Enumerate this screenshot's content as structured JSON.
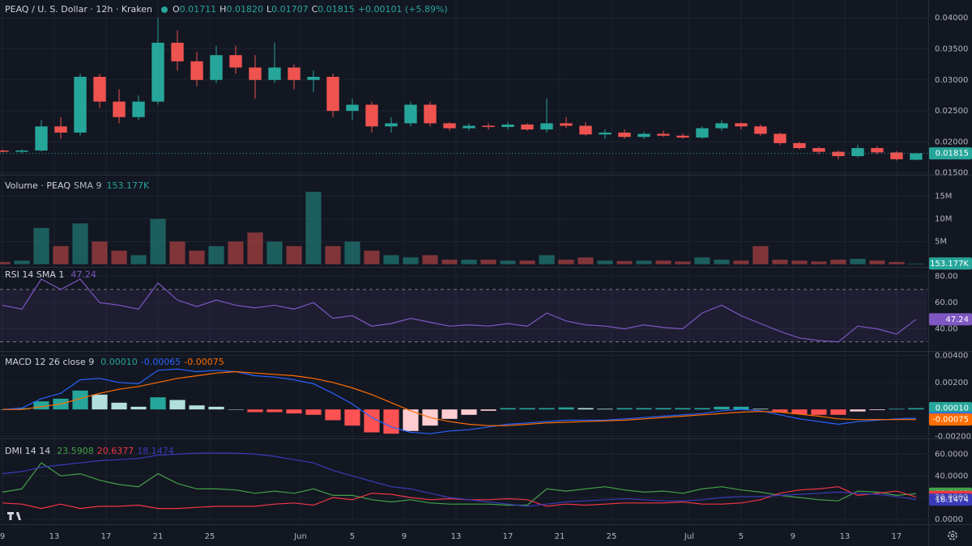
{
  "chart_data": [
    {
      "type": "candlestick",
      "title": "PEAQ / U. S. Dollar · 12h · Kraken",
      "legend_labels": [
        "O",
        "H",
        "L",
        "C"
      ],
      "legend_values": [
        "0.01711",
        "0.01820",
        "0.01707",
        "0.01815"
      ],
      "change": "+0.00101 (+5.89%)",
      "up_color": "#26a69a",
      "down_color": "#ef5350",
      "grid": true,
      "x": [
        0,
        1.5,
        3,
        4.5,
        6,
        7.5,
        9,
        10.5,
        12,
        13.5,
        15,
        16.5,
        18,
        19.5,
        21,
        22.5,
        24,
        25.5,
        27,
        28.5,
        30,
        31.5,
        33,
        34.5,
        36,
        37.5,
        39,
        40.5,
        42,
        43.5,
        45,
        46.5,
        48,
        49.5,
        51,
        52.5,
        54,
        55.5,
        57,
        58.5,
        60,
        61.5,
        63,
        64.5,
        66,
        67.5,
        69,
        70.5
      ],
      "xlim": [
        -0.19,
        71.38
      ],
      "open": [
        0.0186,
        0.0184,
        0.0186,
        0.0225,
        0.0215,
        0.0305,
        0.0265,
        0.024,
        0.0265,
        0.036,
        0.033,
        0.03,
        0.034,
        0.032,
        0.03,
        0.032,
        0.03,
        0.0305,
        0.025,
        0.026,
        0.0225,
        0.023,
        0.026,
        0.023,
        0.0222,
        0.0226,
        0.0224,
        0.0228,
        0.022,
        0.023,
        0.0226,
        0.0212,
        0.0215,
        0.0208,
        0.0213,
        0.021,
        0.0207,
        0.0222,
        0.023,
        0.0225,
        0.0213,
        0.0198,
        0.019,
        0.0184,
        0.0177,
        0.019,
        0.0183,
        0.01711
      ],
      "high": [
        0.0188,
        0.0188,
        0.0235,
        0.024,
        0.031,
        0.031,
        0.0285,
        0.0275,
        0.04,
        0.038,
        0.0345,
        0.0355,
        0.0355,
        0.034,
        0.036,
        0.0325,
        0.0315,
        0.031,
        0.027,
        0.0265,
        0.024,
        0.0265,
        0.0265,
        0.0232,
        0.023,
        0.023,
        0.0232,
        0.023,
        0.027,
        0.024,
        0.0232,
        0.022,
        0.022,
        0.0216,
        0.0218,
        0.0214,
        0.0225,
        0.0235,
        0.0232,
        0.0228,
        0.0215,
        0.02,
        0.0192,
        0.0186,
        0.0195,
        0.0193,
        0.0185,
        0.0182
      ],
      "low": [
        0.0183,
        0.0182,
        0.0185,
        0.0205,
        0.021,
        0.0255,
        0.023,
        0.0235,
        0.026,
        0.0315,
        0.029,
        0.0295,
        0.031,
        0.027,
        0.0295,
        0.0285,
        0.028,
        0.024,
        0.0235,
        0.0215,
        0.0215,
        0.0225,
        0.0225,
        0.0218,
        0.0218,
        0.022,
        0.022,
        0.0218,
        0.0215,
        0.0222,
        0.021,
        0.0205,
        0.0205,
        0.0205,
        0.0208,
        0.0205,
        0.0205,
        0.0218,
        0.022,
        0.021,
        0.0195,
        0.0188,
        0.018,
        0.0172,
        0.0175,
        0.018,
        0.017,
        0.01707
      ],
      "close": [
        0.0184,
        0.0186,
        0.0225,
        0.0215,
        0.0305,
        0.0265,
        0.024,
        0.0265,
        0.036,
        0.033,
        0.03,
        0.034,
        0.032,
        0.03,
        0.032,
        0.03,
        0.0305,
        0.025,
        0.026,
        0.0225,
        0.023,
        0.026,
        0.023,
        0.0222,
        0.0226,
        0.0224,
        0.0228,
        0.022,
        0.023,
        0.0226,
        0.0212,
        0.0215,
        0.0208,
        0.0213,
        0.021,
        0.0207,
        0.0222,
        0.023,
        0.0225,
        0.0213,
        0.0198,
        0.019,
        0.0184,
        0.0177,
        0.019,
        0.0183,
        0.0172,
        0.01815
      ],
      "ylim": [
        0.0147,
        0.0429
      ],
      "yticks": [
        {
          "value": 0.015,
          "label": "0.01500"
        },
        {
          "value": 0.02,
          "label": "0.02000"
        },
        {
          "value": 0.025,
          "label": "0.02500"
        },
        {
          "value": 0.03,
          "label": "0.03000"
        },
        {
          "value": 0.035,
          "label": "0.03500"
        },
        {
          "value": 0.04,
          "label": "0.04000"
        }
      ]
    },
    {
      "type": "bar",
      "title": "Volume · PEAQ",
      "indicator": "SMA 9",
      "up_color": "#26a69a",
      "down_color": "#ef5350",
      "grid": true,
      "x": [
        0,
        1.5,
        3,
        4.5,
        6,
        7.5,
        9,
        10.5,
        12,
        13.5,
        15,
        16.5,
        18,
        19.5,
        21,
        22.5,
        24,
        25.5,
        27,
        28.5,
        30,
        31.5,
        33,
        34.5,
        36,
        37.5,
        39,
        40.5,
        42,
        43.5,
        45,
        46.5,
        48,
        49.5,
        51,
        52.5,
        54,
        55.5,
        57,
        58.5,
        60,
        61.5,
        63,
        64.5,
        66,
        67.5,
        69,
        70.5
      ],
      "xlim": [
        -0.19,
        71.38
      ],
      "values": [
        0.5,
        0.8,
        8,
        4,
        9,
        5,
        3,
        2,
        10,
        5,
        3,
        4,
        5,
        7,
        5,
        4,
        16,
        4,
        5,
        3,
        2,
        1.5,
        2,
        1,
        1,
        1,
        0.8,
        0.8,
        2,
        1,
        1.5,
        0.8,
        0.7,
        0.8,
        0.8,
        0.6,
        1.5,
        1,
        0.8,
        4,
        1,
        0.8,
        0.6,
        1,
        1.2,
        0.8,
        0.5,
        0.153177
      ],
      "value_labels": [
        null,
        null,
        null,
        null,
        null,
        null,
        null,
        null,
        null,
        null,
        null,
        null,
        null,
        null,
        null,
        null,
        null,
        null,
        null,
        null,
        null,
        null,
        null,
        null,
        null,
        null,
        null,
        null,
        null,
        null,
        null,
        null,
        null,
        null,
        null,
        null,
        null,
        null,
        null,
        null,
        null,
        null,
        null,
        null,
        null,
        null,
        null,
        "153.177K"
      ],
      "ylim": [
        -0.6,
        19.4
      ],
      "yticks": [
        {
          "value": 5,
          "label": "5M"
        },
        {
          "value": 10,
          "label": "10M"
        },
        {
          "value": 15,
          "label": "15M"
        }
      ]
    },
    {
      "type": "line",
      "title": "RSI 14 SMA 1",
      "grid": true,
      "bands": [
        30,
        70
      ],
      "band_color": "#7e57c2",
      "x": [
        0,
        1.5,
        3,
        4.5,
        6,
        7.5,
        9,
        10.5,
        12,
        13.5,
        15,
        16.5,
        18,
        19.5,
        21,
        22.5,
        24,
        25.5,
        27,
        28.5,
        30,
        31.5,
        33,
        34.5,
        36,
        37.5,
        39,
        40.5,
        42,
        43.5,
        45,
        46.5,
        48,
        49.5,
        51,
        52.5,
        54,
        55.5,
        57,
        58.5,
        60,
        61.5,
        63,
        64.5,
        66,
        67.5,
        69,
        70.5
      ],
      "xlim": [
        -0.19,
        71.38
      ],
      "series": [
        {
          "color": "#7e57c2",
          "values": [
            58,
            55,
            78,
            70,
            78,
            60,
            58,
            55,
            75,
            62,
            57,
            62,
            58,
            56,
            58,
            55,
            60,
            48,
            50,
            42,
            44,
            48,
            45,
            42,
            43,
            42,
            44,
            42,
            52,
            46,
            43,
            42,
            40,
            43,
            41,
            40,
            52,
            58,
            50,
            44,
            38,
            33,
            31,
            30,
            42,
            40,
            36,
            47.24
          ]
        }
      ],
      "ylim": [
        23,
        86
      ],
      "yticks": [
        {
          "value": 40,
          "label": "40.00"
        },
        {
          "value": 60,
          "label": "60.00"
        },
        {
          "value": 80,
          "label": "80.00"
        }
      ]
    },
    {
      "type": "line",
      "title": "MACD 12 26 close 9",
      "grid": true,
      "x": [
        0,
        1.5,
        3,
        4.5,
        6,
        7.5,
        9,
        10.5,
        12,
        13.5,
        15,
        16.5,
        18,
        19.5,
        21,
        22.5,
        24,
        25.5,
        27,
        28.5,
        30,
        31.5,
        33,
        34.5,
        36,
        37.5,
        39,
        40.5,
        42,
        43.5,
        45,
        46.5,
        48,
        49.5,
        51,
        52.5,
        54,
        55.5,
        57,
        58.5,
        60,
        61.5,
        63,
        64.5,
        66,
        67.5,
        69,
        70.5
      ],
      "xlim": [
        -0.19,
        71.38
      ],
      "histogram": {
        "colors": [
          "#26a69a",
          "#b2dfdb",
          "#ff5252",
          "#ffcdd2"
        ],
        "values": [
          0,
          0.0001,
          0.0006,
          0.0008,
          0.0014,
          0.0011,
          0.0005,
          0.0002,
          0.0009,
          0.0007,
          0.0003,
          0.0002,
          0,
          -0.0002,
          -0.0002,
          -0.0003,
          -0.0004,
          -0.0008,
          -0.0012,
          -0.0017,
          -0.0018,
          -0.0016,
          -0.0012,
          -0.0007,
          -0.0004,
          -0.0001,
          0.0001,
          0.0001,
          0.0001,
          0.00015,
          0.0001,
          5e-05,
          0.0001,
          0.0001,
          0.0001,
          0.0001,
          0.0001,
          0.0002,
          0.0002,
          5e-05,
          -0.0002,
          -0.00035,
          -0.0004,
          -0.0004,
          -0.00015,
          -5e-05,
          5e-05,
          0.0001
        ],
        "value_labels": [
          null,
          null,
          null,
          null,
          null,
          null,
          null,
          null,
          null,
          null,
          null,
          null,
          null,
          null,
          null,
          null,
          null,
          null,
          null,
          null,
          null,
          null,
          null,
          null,
          null,
          null,
          null,
          null,
          null,
          null,
          null,
          null,
          null,
          null,
          null,
          null,
          null,
          null,
          null,
          null,
          null,
          null,
          null,
          null,
          null,
          null,
          null,
          "0.00010"
        ]
      },
      "series": [
        {
          "color": "#2962ff",
          "values": [
            0,
            0.0001,
            0.0008,
            0.0012,
            0.0022,
            0.0023,
            0.002,
            0.0019,
            0.0029,
            0.003,
            0.0028,
            0.0029,
            0.0028,
            0.0025,
            0.0024,
            0.0022,
            0.0019,
            0.0012,
            0.0004,
            -0.0006,
            -0.0013,
            -0.0017,
            -0.0018,
            -0.0016,
            -0.0015,
            -0.0013,
            -0.0011,
            -0.001,
            -0.0009,
            -0.0008,
            -0.0008,
            -0.0008,
            -0.0007,
            -0.0006,
            -0.0005,
            -0.0004,
            -0.0003,
            -0.0001,
            0,
            -0.0001,
            -0.0004,
            -0.0007,
            -0.0009,
            -0.0011,
            -0.0009,
            -0.0008,
            -0.0007,
            -0.00065
          ]
        },
        {
          "color": "#ff6d00",
          "values": [
            0,
            0,
            0.0002,
            0.0004,
            0.0008,
            0.0012,
            0.0015,
            0.0017,
            0.002,
            0.0023,
            0.0025,
            0.0027,
            0.0028,
            0.0027,
            0.0026,
            0.0025,
            0.0023,
            0.002,
            0.0016,
            0.0011,
            0.0005,
            -0.0001,
            -0.0006,
            -0.0009,
            -0.0011,
            -0.0012,
            -0.0012,
            -0.0011,
            -0.001,
            -0.00095,
            -0.0009,
            -0.00085,
            -0.0008,
            -0.0007,
            -0.0006,
            -0.0005,
            -0.0004,
            -0.0003,
            -0.0002,
            -0.00015,
            -0.0002,
            -0.00035,
            -0.0005,
            -0.0007,
            -0.00075,
            -0.00075,
            -0.00075,
            -0.00075
          ]
        }
      ],
      "ylim": [
        -0.00215,
        0.00421
      ],
      "yticks": [
        {
          "value": -0.002,
          "label": "-0.00200"
        },
        {
          "value": 0.002,
          "label": "0.00200"
        },
        {
          "value": 0.004,
          "label": "0.00400"
        }
      ]
    },
    {
      "type": "line",
      "title": "DMI 14 14",
      "grid": true,
      "x": [
        0,
        1.5,
        3,
        4.5,
        6,
        7.5,
        9,
        10.5,
        12,
        13.5,
        15,
        16.5,
        18,
        19.5,
        21,
        22.5,
        24,
        25.5,
        27,
        28.5,
        30,
        31.5,
        33,
        34.5,
        36,
        37.5,
        39,
        40.5,
        42,
        43.5,
        45,
        46.5,
        48,
        49.5,
        51,
        52.5,
        54,
        55.5,
        57,
        58.5,
        60,
        61.5,
        63,
        64.5,
        66,
        67.5,
        69,
        70.5
      ],
      "xlim": [
        -0.19,
        71.38
      ],
      "series": [
        {
          "color": "#43a047",
          "values": [
            25,
            28,
            52,
            40,
            42,
            36,
            32,
            30,
            42,
            33,
            28,
            28,
            27,
            24,
            26,
            24,
            28,
            22,
            22,
            18,
            16,
            18,
            15,
            14,
            14,
            14,
            13,
            13,
            28,
            26,
            28,
            30,
            27,
            25,
            26,
            24,
            28,
            30,
            27,
            25,
            22,
            20,
            18,
            17,
            26,
            25,
            22,
            23.5908
          ]
        },
        {
          "color": "#f23645",
          "values": [
            15,
            14,
            10,
            14,
            10,
            12,
            12,
            13,
            10,
            10,
            11,
            12,
            12,
            12,
            14,
            15,
            13,
            20,
            18,
            24,
            23,
            20,
            18,
            19,
            18,
            18,
            19,
            18,
            12,
            14,
            13,
            14,
            15,
            15,
            15,
            16,
            14,
            14,
            15,
            18,
            24,
            27,
            28,
            30,
            22,
            24,
            26,
            20.6377
          ]
        },
        {
          "color": "#3a3ab8",
          "values": [
            42,
            44,
            48,
            50,
            52,
            54,
            55,
            56,
            59,
            60,
            61,
            61,
            61,
            60,
            58,
            55,
            52,
            45,
            40,
            35,
            30,
            28,
            24,
            20,
            18,
            16,
            14,
            12,
            14,
            16,
            17,
            18,
            19,
            18,
            17,
            17,
            18,
            20,
            21,
            21,
            22,
            23,
            24,
            25,
            24,
            23,
            21,
            18.1474
          ]
        }
      ],
      "ylim": [
        -3,
        73
      ],
      "yticks": [
        {
          "value": 0,
          "label": "0.0000"
        },
        {
          "value": 20,
          "label": "20.0000"
        },
        {
          "value": 40,
          "label": "40.0000"
        },
        {
          "value": 60,
          "label": "60.0000"
        }
      ],
      "xticks": [
        {
          "value": 0,
          "label": "9"
        },
        {
          "value": 4,
          "label": "13"
        },
        {
          "value": 8,
          "label": "17"
        },
        {
          "value": 12,
          "label": "21"
        },
        {
          "value": 16,
          "label": "25"
        },
        {
          "value": 23,
          "label": "Jun"
        },
        {
          "value": 27,
          "label": "5"
        },
        {
          "value": 31,
          "label": "9"
        },
        {
          "value": 35,
          "label": "13"
        },
        {
          "value": 39,
          "label": "17"
        },
        {
          "value": 43,
          "label": "21"
        },
        {
          "value": 47,
          "label": "25"
        },
        {
          "value": 53,
          "label": "Jul"
        },
        {
          "value": 57,
          "label": "5"
        },
        {
          "value": 61,
          "label": "9"
        },
        {
          "value": 65,
          "label": "13"
        },
        {
          "value": 69,
          "label": "17"
        }
      ]
    }
  ]
}
